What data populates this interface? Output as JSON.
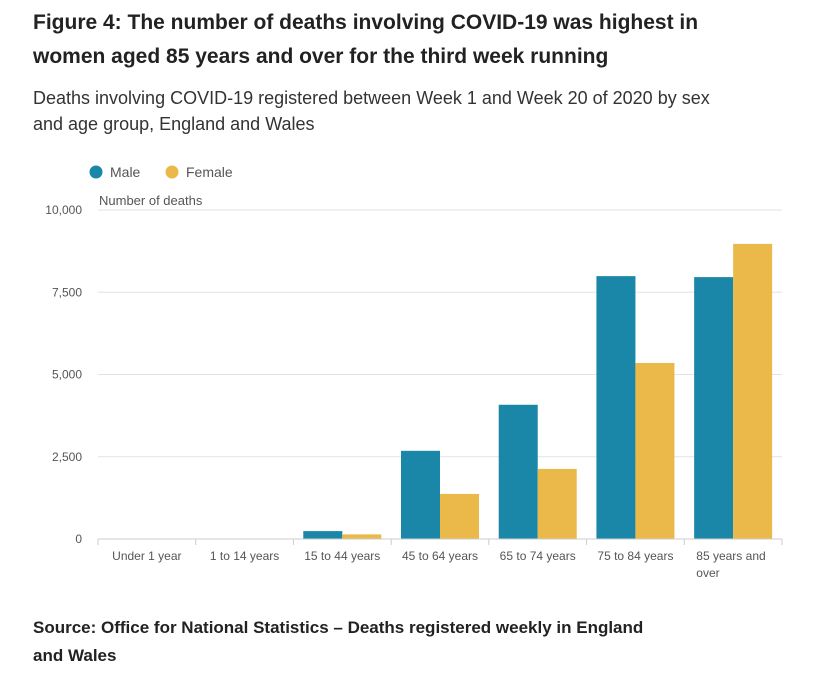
{
  "header": {
    "title": "Figure 4: The number of deaths involving COVID-19 was highest in women aged 85 years and over for the third week running",
    "subtitle": "Deaths involving COVID-19 registered between Week 1 and Week 20 of 2020 by sex and age group, England and Wales"
  },
  "footer": {
    "source": "Source: Office for National Statistics – Deaths registered weekly in England and Wales"
  },
  "chart_data": {
    "type": "bar",
    "title": "",
    "xlabel": "",
    "ylabel": "Number of deaths",
    "ylim": [
      0,
      10000
    ],
    "yticks": [
      0,
      2500,
      5000,
      7500,
      10000
    ],
    "ytick_labels": [
      "0",
      "2,500",
      "5,000",
      "7,500",
      "10,000"
    ],
    "categories": [
      "Under 1 year",
      "1 to 14 years",
      "15 to 44 years",
      "45 to 64 years",
      "65 to 74 years",
      "75 to 84 years",
      "85 years and over"
    ],
    "series": [
      {
        "name": "Male",
        "color": "#1a87a8",
        "values": [
          2,
          3,
          240,
          2680,
          4080,
          7990,
          7960
        ]
      },
      {
        "name": "Female",
        "color": "#eab94a",
        "values": [
          1,
          2,
          140,
          1370,
          2130,
          5350,
          8970
        ]
      }
    ],
    "grid": true,
    "legend": "top-left"
  }
}
